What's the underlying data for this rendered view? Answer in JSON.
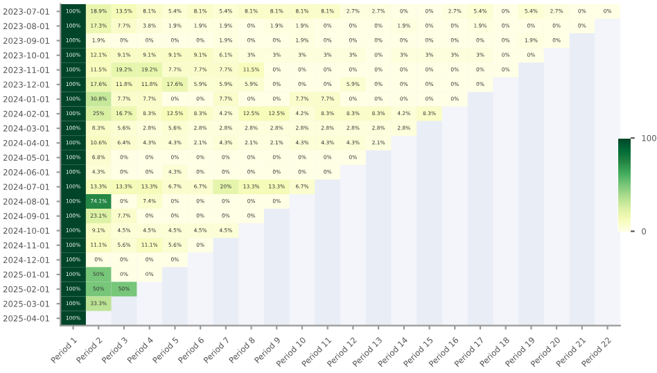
{
  "chart_data": {
    "type": "heatmap",
    "categories": [
      "Period 1",
      "Period 2",
      "Period 3",
      "Period 4",
      "Period 5",
      "Period 6",
      "Period 7",
      "Period 8",
      "Period 9",
      "Period 10",
      "Period 11",
      "Period 12",
      "Period 13",
      "Period 14",
      "Period 15",
      "Period 16",
      "Period 17",
      "Period 18",
      "Period 19",
      "Period 20",
      "Period 21",
      "Period 22"
    ],
    "y_categories": [
      "2023-07-01",
      "2023-08-01",
      "2023-09-01",
      "2023-10-01",
      "2023-11-01",
      "2023-12-01",
      "2024-01-01",
      "2024-02-01",
      "2024-03-01",
      "2024-04-01",
      "2024-05-01",
      "2024-06-01",
      "2024-07-01",
      "2024-08-01",
      "2024-09-01",
      "2024-10-01",
      "2024-11-01",
      "2024-12-01",
      "2025-01-01",
      "2025-02-01",
      "2025-03-01",
      "2025-04-01"
    ],
    "cells": [
      [
        100,
        18.9,
        13.5,
        8.1,
        5.4,
        8.1,
        5.4,
        8.1,
        8.1,
        8.1,
        8.1,
        2.7,
        2.7,
        0,
        0,
        2.7,
        5.4,
        0,
        5.4,
        2.7,
        0,
        0
      ],
      [
        100,
        17.3,
        7.7,
        3.8,
        1.9,
        1.9,
        1.9,
        0,
        1.9,
        1.9,
        0,
        0,
        0,
        1.9,
        0,
        0,
        1.9,
        0,
        0,
        0,
        0,
        null
      ],
      [
        100,
        1.9,
        0,
        0,
        0,
        0,
        1.9,
        0,
        0,
        1.9,
        0,
        0,
        0,
        0,
        0,
        0,
        0,
        0,
        1.9,
        0,
        null,
        null
      ],
      [
        100,
        12.1,
        9.1,
        9.1,
        9.1,
        9.1,
        6.1,
        3,
        3,
        3,
        3,
        3,
        0,
        3,
        3,
        3,
        3,
        0,
        0,
        null,
        null,
        null
      ],
      [
        100,
        11.5,
        19.2,
        19.2,
        7.7,
        7.7,
        7.7,
        11.5,
        0,
        0,
        0,
        0,
        0,
        0,
        0,
        0,
        0,
        0,
        null,
        null,
        null,
        null
      ],
      [
        100,
        17.6,
        11.8,
        11.8,
        17.6,
        5.9,
        5.9,
        5.9,
        0,
        0,
        0,
        5.9,
        0,
        0,
        0,
        0,
        0,
        null,
        null,
        null,
        null,
        null
      ],
      [
        100,
        30.8,
        7.7,
        7.7,
        0,
        0,
        7.7,
        0,
        0,
        7.7,
        7.7,
        0,
        0,
        0,
        0,
        0,
        null,
        null,
        null,
        null,
        null,
        null
      ],
      [
        100,
        25,
        16.7,
        8.3,
        12.5,
        8.3,
        4.2,
        12.5,
        12.5,
        4.2,
        8.3,
        8.3,
        8.3,
        4.2,
        8.3,
        null,
        null,
        null,
        null,
        null,
        null,
        null
      ],
      [
        100,
        8.3,
        5.6,
        2.8,
        5.6,
        2.8,
        2.8,
        2.8,
        2.8,
        2.8,
        2.8,
        2.8,
        2.8,
        2.8,
        null,
        null,
        null,
        null,
        null,
        null,
        null,
        null
      ],
      [
        100,
        10.6,
        6.4,
        4.3,
        4.3,
        2.1,
        4.3,
        2.1,
        2.1,
        4.3,
        4.3,
        4.3,
        2.1,
        null,
        null,
        null,
        null,
        null,
        null,
        null,
        null,
        null
      ],
      [
        100,
        6.8,
        0,
        0,
        0,
        0,
        0,
        0,
        0,
        0,
        0,
        0,
        null,
        null,
        null,
        null,
        null,
        null,
        null,
        null,
        null,
        null
      ],
      [
        100,
        4.3,
        0,
        0,
        4.3,
        0,
        0,
        0,
        0,
        0,
        0,
        null,
        null,
        null,
        null,
        null,
        null,
        null,
        null,
        null,
        null,
        null
      ],
      [
        100,
        13.3,
        13.3,
        13.3,
        6.7,
        6.7,
        20,
        13.3,
        13.3,
        6.7,
        null,
        null,
        null,
        null,
        null,
        null,
        null,
        null,
        null,
        null,
        null,
        null
      ],
      [
        100,
        74.1,
        0,
        7.4,
        0,
        0,
        0,
        0,
        0,
        null,
        null,
        null,
        null,
        null,
        null,
        null,
        null,
        null,
        null,
        null,
        null,
        null
      ],
      [
        100,
        23.1,
        7.7,
        0,
        0,
        0,
        0,
        0,
        null,
        null,
        null,
        null,
        null,
        null,
        null,
        null,
        null,
        null,
        null,
        null,
        null,
        null
      ],
      [
        100,
        9.1,
        4.5,
        4.5,
        4.5,
        4.5,
        4.5,
        null,
        null,
        null,
        null,
        null,
        null,
        null,
        null,
        null,
        null,
        null,
        null,
        null,
        null,
        null
      ],
      [
        100,
        11.1,
        5.6,
        11.1,
        5.6,
        0,
        null,
        null,
        null,
        null,
        null,
        null,
        null,
        null,
        null,
        null,
        null,
        null,
        null,
        null,
        null,
        null
      ],
      [
        100,
        0,
        0,
        0,
        0,
        null,
        null,
        null,
        null,
        null,
        null,
        null,
        null,
        null,
        null,
        null,
        null,
        null,
        null,
        null,
        null,
        null
      ],
      [
        100,
        50,
        0,
        0,
        null,
        null,
        null,
        null,
        null,
        null,
        null,
        null,
        null,
        null,
        null,
        null,
        null,
        null,
        null,
        null,
        null,
        null
      ],
      [
        100,
        50,
        50,
        null,
        null,
        null,
        null,
        null,
        null,
        null,
        null,
        null,
        null,
        null,
        null,
        null,
        null,
        null,
        null,
        null,
        null,
        null
      ],
      [
        100,
        33.3,
        null,
        null,
        null,
        null,
        null,
        null,
        null,
        null,
        null,
        null,
        null,
        null,
        null,
        null,
        null,
        null,
        null,
        null,
        null,
        null
      ],
      [
        100,
        null,
        null,
        null,
        null,
        null,
        null,
        null,
        null,
        null,
        null,
        null,
        null,
        null,
        null,
        null,
        null,
        null,
        null,
        null,
        null,
        null
      ]
    ],
    "cell_labels": [
      [
        "100%",
        "18.9%",
        "13.5%",
        "8.1%",
        "5.4%",
        "8.1%",
        "5.4%",
        "8.1%",
        "8.1%",
        "8.1%",
        "8.1%",
        "2.7%",
        "2.7%",
        "0%",
        "0%",
        "2.7%",
        "5.4%",
        "0%",
        "5.4%",
        "2.7%",
        "0%",
        "0%"
      ],
      [
        "100%",
        "17.3%",
        "7.7%",
        "3.8%",
        "1.9%",
        "1.9%",
        "1.9%",
        "0%",
        "1.9%",
        "1.9%",
        "0%",
        "0%",
        "0%",
        "1.9%",
        "0%",
        "0%",
        "1.9%",
        "0%",
        "0%",
        "0%",
        "0%",
        null
      ],
      [
        "100%",
        "1.9%",
        "0%",
        "0%",
        "0%",
        "0%",
        "1.9%",
        "0%",
        "0%",
        "1.9%",
        "0%",
        "0%",
        "0%",
        "0%",
        "0%",
        "0%",
        "0%",
        "0%",
        "1.9%",
        "0%",
        null,
        null
      ],
      [
        "100%",
        "12.1%",
        "9.1%",
        "9.1%",
        "9.1%",
        "9.1%",
        "6.1%",
        "3%",
        "3%",
        "3%",
        "3%",
        "3%",
        "0%",
        "3%",
        "3%",
        "3%",
        "3%",
        "0%",
        "0%",
        null,
        null,
        null
      ],
      [
        "100%",
        "11.5%",
        "19.2%",
        "19.2%",
        "7.7%",
        "7.7%",
        "7.7%",
        "11.5%",
        "0%",
        "0%",
        "0%",
        "0%",
        "0%",
        "0%",
        "0%",
        "0%",
        "0%",
        "0%",
        null,
        null,
        null,
        null
      ],
      [
        "100%",
        "17.6%",
        "11.8%",
        "11.8%",
        "17.6%",
        "5.9%",
        "5.9%",
        "5.9%",
        "0%",
        "0%",
        "0%",
        "5.9%",
        "0%",
        "0%",
        "0%",
        "0%",
        "0%",
        null,
        null,
        null,
        null,
        null
      ],
      [
        "100%",
        "30.8%",
        "7.7%",
        "7.7%",
        "0%",
        "0%",
        "7.7%",
        "0%",
        "0%",
        "7.7%",
        "7.7%",
        "0%",
        "0%",
        "0%",
        "0%",
        "0%",
        null,
        null,
        null,
        null,
        null,
        null
      ],
      [
        "100%",
        "25%",
        "16.7%",
        "8.3%",
        "12.5%",
        "8.3%",
        "4.2%",
        "12.5%",
        "12.5%",
        "4.2%",
        "8.3%",
        "8.3%",
        "8.3%",
        "4.2%",
        "8.3%",
        null,
        null,
        null,
        null,
        null,
        null,
        null
      ],
      [
        "100%",
        "8.3%",
        "5.6%",
        "2.8%",
        "5.6%",
        "2.8%",
        "2.8%",
        "2.8%",
        "2.8%",
        "2.8%",
        "2.8%",
        "2.8%",
        "2.8%",
        "2.8%",
        null,
        null,
        null,
        null,
        null,
        null,
        null,
        null
      ],
      [
        "100%",
        "10.6%",
        "6.4%",
        "4.3%",
        "4.3%",
        "2.1%",
        "4.3%",
        "2.1%",
        "2.1%",
        "4.3%",
        "4.3%",
        "4.3%",
        "2.1%",
        null,
        null,
        null,
        null,
        null,
        null,
        null,
        null,
        null
      ],
      [
        "100%",
        "6.8%",
        "0%",
        "0%",
        "0%",
        "0%",
        "0%",
        "0%",
        "0%",
        "0%",
        "0%",
        "0%",
        null,
        null,
        null,
        null,
        null,
        null,
        null,
        null,
        null,
        null
      ],
      [
        "100%",
        "4.3%",
        "0%",
        "0%",
        "4.3%",
        "0%",
        "0%",
        "0%",
        "0%",
        "0%",
        "0%",
        null,
        null,
        null,
        null,
        null,
        null,
        null,
        null,
        null,
        null,
        null
      ],
      [
        "100%",
        "13.3%",
        "13.3%",
        "13.3%",
        "6.7%",
        "6.7%",
        "20%",
        "13.3%",
        "13.3%",
        "6.7%",
        null,
        null,
        null,
        null,
        null,
        null,
        null,
        null,
        null,
        null,
        null,
        null
      ],
      [
        "100%",
        "74.1%",
        "0%",
        "7.4%",
        "0%",
        "0%",
        "0%",
        "0%",
        "0%",
        null,
        null,
        null,
        null,
        null,
        null,
        null,
        null,
        null,
        null,
        null,
        null,
        null
      ],
      [
        "100%",
        "23.1%",
        "7.7%",
        "0%",
        "0%",
        "0%",
        "0%",
        "0%",
        null,
        null,
        null,
        null,
        null,
        null,
        null,
        null,
        null,
        null,
        null,
        null,
        null,
        null
      ],
      [
        "100%",
        "9.1%",
        "4.5%",
        "4.5%",
        "4.5%",
        "4.5%",
        "4.5%",
        null,
        null,
        null,
        null,
        null,
        null,
        null,
        null,
        null,
        null,
        null,
        null,
        null,
        null,
        null
      ],
      [
        "100%",
        "11.1%",
        "5.6%",
        "11.1%",
        "5.6%",
        "0%",
        null,
        null,
        null,
        null,
        null,
        null,
        null,
        null,
        null,
        null,
        null,
        null,
        null,
        null,
        null,
        null
      ],
      [
        "100%",
        "0%",
        "0%",
        "0%",
        "0%",
        null,
        null,
        null,
        null,
        null,
        null,
        null,
        null,
        null,
        null,
        null,
        null,
        null,
        null,
        null,
        null,
        null
      ],
      [
        "100%",
        "50%",
        "0%",
        "0%",
        null,
        null,
        null,
        null,
        null,
        null,
        null,
        null,
        null,
        null,
        null,
        null,
        null,
        null,
        null,
        null,
        null,
        null
      ],
      [
        "100%",
        "50%",
        "50%",
        null,
        null,
        null,
        null,
        null,
        null,
        null,
        null,
        null,
        null,
        null,
        null,
        null,
        null,
        null,
        null,
        null,
        null,
        null
      ],
      [
        "100%",
        "33.3%",
        null,
        null,
        null,
        null,
        null,
        null,
        null,
        null,
        null,
        null,
        null,
        null,
        null,
        null,
        null,
        null,
        null,
        null,
        null,
        null
      ],
      [
        "100%",
        null,
        null,
        null,
        null,
        null,
        null,
        null,
        null,
        null,
        null,
        null,
        null,
        null,
        null,
        null,
        null,
        null,
        null,
        null,
        null,
        null
      ]
    ],
    "clim": [
      0,
      100
    ],
    "cticks": [
      0,
      100
    ]
  }
}
